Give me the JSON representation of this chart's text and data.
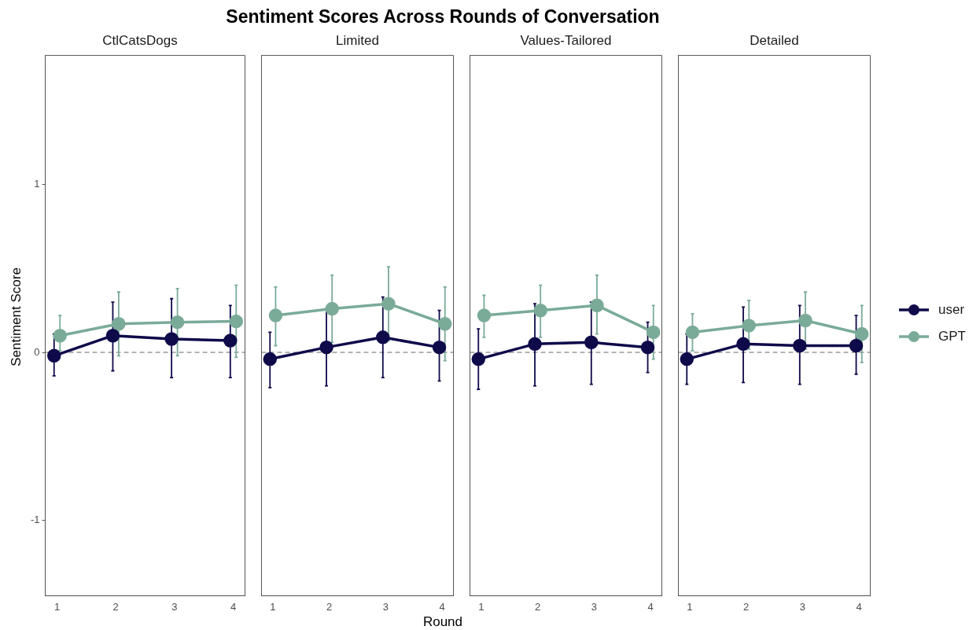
{
  "chart_data": [
    {
      "type": "line",
      "subtitle": "CtlCatsDogs",
      "ylabel": "Sentiment Score",
      "xlim": [
        0.8,
        4.2
      ],
      "xticks": [
        1,
        2,
        3,
        4
      ],
      "ylim": [
        -1.45,
        1.77
      ],
      "yticks": [
        -1,
        0,
        1
      ],
      "grid": false,
      "marker": "circle",
      "line_style": "solid",
      "ref_lines": [
        {
          "axis": "y",
          "value": 0,
          "color": "#999999",
          "line_style": "dashed"
        }
      ],
      "series": [
        {
          "color": "#0f0a4a",
          "x": [
            0.95,
            1.95,
            2.95,
            3.95
          ],
          "values": [
            -0.02,
            0.1,
            0.08,
            0.07
          ],
          "errors": [
            [
              -0.14,
              0.11
            ],
            [
              -0.11,
              0.3
            ],
            [
              -0.15,
              0.32
            ],
            [
              -0.15,
              0.28
            ]
          ]
        },
        {
          "color": "#7aab98",
          "x": [
            1.05,
            2.05,
            3.05,
            4.05
          ],
          "values": [
            0.1,
            0.17,
            0.18,
            0.185
          ],
          "errors": [
            [
              0.01,
              0.22
            ],
            [
              -0.02,
              0.36
            ],
            [
              -0.02,
              0.38
            ],
            [
              -0.03,
              0.4
            ]
          ]
        }
      ]
    },
    {
      "type": "line",
      "title": "Sentiment Scores Across Rounds of Conversation",
      "xlabel": "Round",
      "subtitle": "Limited",
      "xlim": [
        0.8,
        4.2
      ],
      "xticks": [
        1,
        2,
        3,
        4
      ],
      "ylim": [
        -1.45,
        1.77
      ],
      "yticks": [
        -1,
        0,
        1
      ],
      "tick_labels": "x",
      "grid": false,
      "marker": "circle",
      "line_style": "solid",
      "ref_lines": [
        {
          "axis": "y",
          "value": 0,
          "color": "#999999",
          "line_style": "dashed"
        }
      ],
      "series": [
        {
          "color": "#0f0a4a",
          "x": [
            0.95,
            1.95,
            2.95,
            3.95
          ],
          "values": [
            -0.04,
            0.03,
            0.09,
            0.03
          ],
          "errors": [
            [
              -0.21,
              0.12
            ],
            [
              -0.2,
              0.26
            ],
            [
              -0.15,
              0.33
            ],
            [
              -0.17,
              0.25
            ]
          ]
        },
        {
          "color": "#7aab98",
          "x": [
            1.05,
            2.05,
            3.05,
            4.05
          ],
          "values": [
            0.22,
            0.26,
            0.29,
            0.17
          ],
          "errors": [
            [
              0.04,
              0.39
            ],
            [
              0.06,
              0.46
            ],
            [
              0.07,
              0.51
            ],
            [
              -0.05,
              0.39
            ]
          ]
        }
      ]
    },
    {
      "type": "line",
      "subtitle": "Values-Tailored",
      "xlim": [
        0.8,
        4.2
      ],
      "xticks": [
        1,
        2,
        3,
        4
      ],
      "ylim": [
        -1.45,
        1.77
      ],
      "yticks": [
        -1,
        0,
        1
      ],
      "tick_labels": "x",
      "grid": false,
      "marker": "circle",
      "line_style": "solid",
      "ref_lines": [
        {
          "axis": "y",
          "value": 0,
          "color": "#999999",
          "line_style": "dashed"
        }
      ],
      "series": [
        {
          "color": "#0f0a4a",
          "x": [
            0.95,
            1.95,
            2.95,
            3.95
          ],
          "values": [
            -0.04,
            0.05,
            0.06,
            0.03
          ],
          "errors": [
            [
              -0.22,
              0.14
            ],
            [
              -0.2,
              0.29
            ],
            [
              -0.19,
              0.3
            ],
            [
              -0.12,
              0.18
            ]
          ]
        },
        {
          "color": "#7aab98",
          "x": [
            1.05,
            2.05,
            3.05,
            4.05
          ],
          "values": [
            0.22,
            0.25,
            0.28,
            0.12
          ],
          "errors": [
            [
              0.09,
              0.34
            ],
            [
              0.09,
              0.4
            ],
            [
              0.11,
              0.46
            ],
            [
              -0.04,
              0.28
            ]
          ]
        }
      ]
    },
    {
      "type": "line",
      "subtitle": "Detailed",
      "xlim": [
        0.8,
        4.2
      ],
      "xticks": [
        1,
        2,
        3,
        4
      ],
      "ylim": [
        -1.45,
        1.77
      ],
      "yticks": [
        -1,
        0,
        1
      ],
      "tick_labels": "x",
      "grid": false,
      "marker": "circle",
      "line_style": "solid",
      "legend": "right",
      "ref_lines": [
        {
          "axis": "y",
          "value": 0,
          "color": "#999999",
          "line_style": "dashed"
        }
      ],
      "series": [
        {
          "name": "user",
          "color": "#0f0a4a",
          "x": [
            0.95,
            1.95,
            2.95,
            3.95
          ],
          "values": [
            -0.04,
            0.05,
            0.04,
            0.04
          ],
          "errors": [
            [
              -0.19,
              0.11
            ],
            [
              -0.18,
              0.27
            ],
            [
              -0.19,
              0.28
            ],
            [
              -0.13,
              0.22
            ]
          ]
        },
        {
          "name": "GPT",
          "color": "#7aab98",
          "x": [
            1.05,
            2.05,
            3.05,
            4.05
          ],
          "values": [
            0.12,
            0.16,
            0.19,
            0.11
          ],
          "errors": [
            [
              0.01,
              0.23
            ],
            [
              0.02,
              0.31
            ],
            [
              0.02,
              0.36
            ],
            [
              -0.06,
              0.28
            ]
          ]
        }
      ]
    }
  ]
}
